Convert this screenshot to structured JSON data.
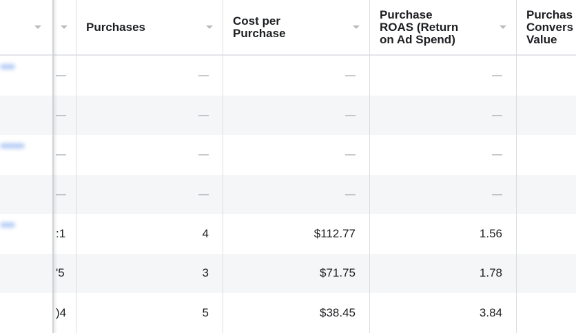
{
  "columns": {
    "purchases": "Purchases",
    "cost_per_purchase": [
      "Cost per",
      "Purchase"
    ],
    "roas": [
      "Purchase",
      "ROAS (Return",
      "on Ad Spend)"
    ],
    "conversion_value": [
      "Purchas",
      "Convers",
      "Value"
    ]
  },
  "rows": [
    {
      "partial": "—",
      "purchases": "—",
      "cost": "—",
      "roas": "—"
    },
    {
      "partial": "—",
      "purchases": "—",
      "cost": "—",
      "roas": "—"
    },
    {
      "partial": "—",
      "purchases": "—",
      "cost": "—",
      "roas": "—"
    },
    {
      "partial": "—",
      "purchases": "—",
      "cost": "—",
      "roas": "—"
    },
    {
      "partial": ":1",
      "purchases": "4",
      "cost": "$112.77",
      "roas": "1.56"
    },
    {
      "partial": "'5",
      "purchases": "3",
      "cost": "$71.75",
      "roas": "1.78"
    },
    {
      "partial": ")4",
      "purchases": "5",
      "cost": "$38.45",
      "roas": "3.84"
    }
  ],
  "colors": {
    "header_border": "#e4e6eb",
    "row_shade": "#f5f6f7",
    "dash": "#8d949e"
  }
}
